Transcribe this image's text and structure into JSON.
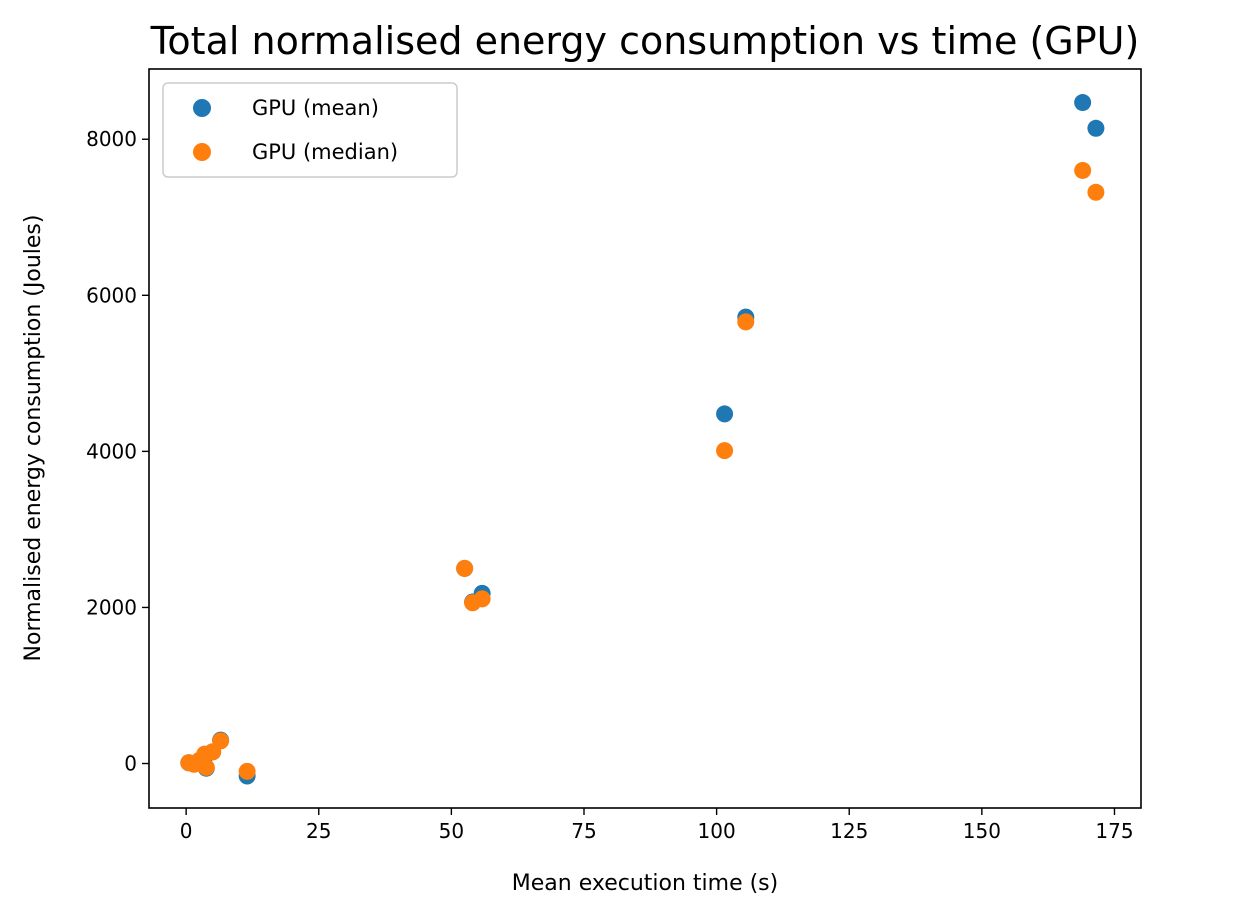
{
  "chart_data": {
    "type": "scatter",
    "title": "Total normalised energy consumption vs time (GPU)",
    "xlabel": "Mean execution time (s)",
    "ylabel": "Normalised energy consumption (Joules)",
    "xlim": [
      -7,
      180
    ],
    "ylim": [
      -570,
      8900
    ],
    "xticks": [
      0,
      25,
      50,
      75,
      100,
      125,
      150,
      175
    ],
    "yticks": [
      0,
      2000,
      4000,
      6000,
      8000
    ],
    "grid": false,
    "legend_position": "upper-left",
    "series": [
      {
        "name": "GPU (mean)",
        "color": "#1f77b4",
        "points": [
          {
            "x": 0.5,
            "y": 10
          },
          {
            "x": 1.5,
            "y": -5
          },
          {
            "x": 2.5,
            "y": 30
          },
          {
            "x": 3.5,
            "y": 90
          },
          {
            "x": 3.8,
            "y": -60
          },
          {
            "x": 5.0,
            "y": 150
          },
          {
            "x": 6.5,
            "y": 300
          },
          {
            "x": 11.5,
            "y": -160
          },
          {
            "x": 52.5,
            "y": 2500
          },
          {
            "x": 54.0,
            "y": 2070
          },
          {
            "x": 55.8,
            "y": 2180
          },
          {
            "x": 101.5,
            "y": 4480
          },
          {
            "x": 105.5,
            "y": 5720
          },
          {
            "x": 169.0,
            "y": 8470
          },
          {
            "x": 171.5,
            "y": 8140
          }
        ]
      },
      {
        "name": "GPU (median)",
        "color": "#ff7f0e",
        "points": [
          {
            "x": 0.5,
            "y": 10
          },
          {
            "x": 1.5,
            "y": -10
          },
          {
            "x": 2.5,
            "y": 40
          },
          {
            "x": 3.5,
            "y": 120
          },
          {
            "x": 3.8,
            "y": -50
          },
          {
            "x": 5.0,
            "y": 150
          },
          {
            "x": 6.5,
            "y": 290
          },
          {
            "x": 11.5,
            "y": -100
          },
          {
            "x": 52.5,
            "y": 2500
          },
          {
            "x": 54.0,
            "y": 2060
          },
          {
            "x": 55.8,
            "y": 2110
          },
          {
            "x": 101.5,
            "y": 4010
          },
          {
            "x": 105.5,
            "y": 5660
          },
          {
            "x": 169.0,
            "y": 7600
          },
          {
            "x": 171.5,
            "y": 7320
          }
        ]
      }
    ]
  }
}
